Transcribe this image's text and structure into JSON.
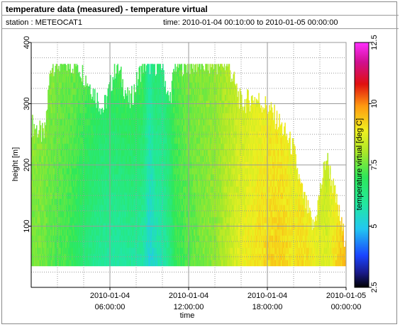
{
  "title": "temperature data (measured) - temperature virtual",
  "station_label": "station : METEOCAT1",
  "time_label": "time: 2010-01-04 00:10:00 to 2010-01-05 00:00:00",
  "chart_data": {
    "type": "heatmap",
    "xlabel": "time",
    "ylabel": "height [m]",
    "colorbar_label": "temperature virtual [deg C]",
    "x_ticks": [
      {
        "hours": 6,
        "line1": "2010-01-04",
        "line2": "06:00:00"
      },
      {
        "hours": 12,
        "line1": "2010-01-04",
        "line2": "12:00:00"
      },
      {
        "hours": 18,
        "line1": "2010-01-04",
        "line2": "18:00:00"
      },
      {
        "hours": 24,
        "line1": "2010-01-05",
        "line2": "00:00:00"
      }
    ],
    "x_range_hours": [
      0,
      24
    ],
    "y_range": [
      0,
      400
    ],
    "y_ticks": [
      100,
      200,
      300,
      400
    ],
    "colorbar_range": [
      2.5,
      12.5
    ],
    "colorbar_ticks": [
      2.5,
      5,
      7.5,
      10,
      12.5
    ],
    "grid": true,
    "colors": {
      "grid": "#9a9a9a",
      "axis": "#000000"
    },
    "heights_m": [
      35,
      365
    ],
    "column_profiles": [
      {
        "hours": 0.2,
        "top_m": 265,
        "temp_low": 7.6,
        "temp_high": 7.8
      },
      {
        "hours": 1.0,
        "top_m": 245,
        "temp_low": 7.5,
        "temp_high": 7.8
      },
      {
        "hours": 1.5,
        "top_m": 365,
        "temp_low": 7.3,
        "temp_high": 7.7
      },
      {
        "hours": 2.5,
        "top_m": 365,
        "temp_low": 7.2,
        "temp_high": 7.5
      },
      {
        "hours": 3.5,
        "top_m": 365,
        "temp_low": 6.8,
        "temp_high": 7.5
      },
      {
        "hours": 4.5,
        "top_m": 330,
        "temp_low": 6.3,
        "temp_high": 7.3
      },
      {
        "hours": 5.5,
        "top_m": 290,
        "temp_low": 6.0,
        "temp_high": 7.0
      },
      {
        "hours": 6.5,
        "top_m": 365,
        "temp_low": 5.8,
        "temp_high": 7.2
      },
      {
        "hours": 7.5,
        "top_m": 300,
        "temp_low": 6.0,
        "temp_high": 7.3
      },
      {
        "hours": 8.5,
        "top_m": 365,
        "temp_low": 5.8,
        "temp_high": 7.2
      },
      {
        "hours": 9.0,
        "top_m": 365,
        "temp_low": 5.2,
        "temp_high": 6.0
      },
      {
        "hours": 9.5,
        "top_m": 365,
        "temp_low": 5.5,
        "temp_high": 6.8
      },
      {
        "hours": 10.0,
        "top_m": 365,
        "temp_low": 5.8,
        "temp_high": 6.4
      },
      {
        "hours": 10.5,
        "top_m": 300,
        "temp_low": 6.2,
        "temp_high": 7.0
      },
      {
        "hours": 11.0,
        "top_m": 365,
        "temp_low": 7.0,
        "temp_high": 7.3
      },
      {
        "hours": 12.0,
        "top_m": 365,
        "temp_low": 7.3,
        "temp_high": 7.6
      },
      {
        "hours": 13.0,
        "top_m": 365,
        "temp_low": 7.6,
        "temp_high": 7.7
      },
      {
        "hours": 14.0,
        "top_m": 365,
        "temp_low": 7.8,
        "temp_high": 7.8
      },
      {
        "hours": 15.0,
        "top_m": 365,
        "temp_low": 8.3,
        "temp_high": 8.1
      },
      {
        "hours": 16.0,
        "top_m": 300,
        "temp_low": 8.8,
        "temp_high": 8.4
      },
      {
        "hours": 17.0,
        "top_m": 310,
        "temp_low": 9.0,
        "temp_high": 8.6
      },
      {
        "hours": 18.0,
        "top_m": 295,
        "temp_low": 9.2,
        "temp_high": 8.8
      },
      {
        "hours": 19.0,
        "top_m": 265,
        "temp_low": 9.3,
        "temp_high": 8.8
      },
      {
        "hours": 20.0,
        "top_m": 225,
        "temp_low": 9.0,
        "temp_high": 8.6
      },
      {
        "hours": 20.5,
        "top_m": 165,
        "temp_low": 9.2,
        "temp_high": 8.5
      },
      {
        "hours": 21.5,
        "top_m": 95,
        "temp_low": 8.9,
        "temp_high": 8.5
      },
      {
        "hours": 22.5,
        "top_m": 215,
        "temp_low": 8.6,
        "temp_high": 8.0
      },
      {
        "hours": 23.8,
        "top_m": 85,
        "temp_low": 9.5,
        "temp_high": 9.0
      }
    ]
  }
}
